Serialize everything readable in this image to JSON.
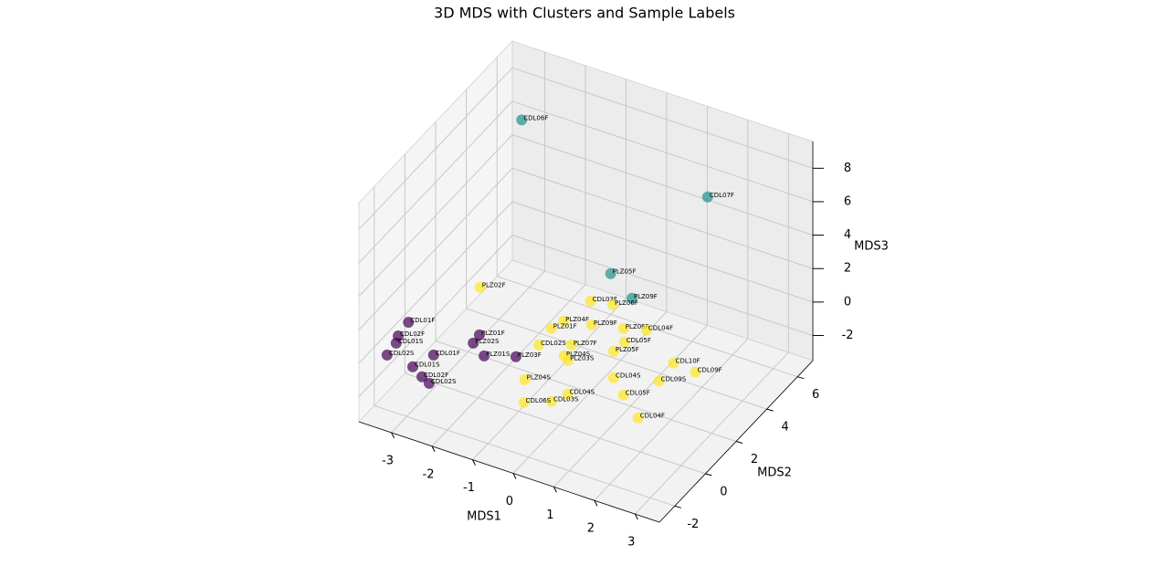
{
  "chart_data": {
    "type": "scatter3d",
    "title": "3D MDS with Clusters and Sample Labels",
    "xlabel": "MDS1",
    "ylabel": "MDS2",
    "zlabel": "MDS3",
    "xlim": [
      -3.8,
      3.6
    ],
    "ylim": [
      -3,
      7
    ],
    "zlim": [
      -3.5,
      9.6
    ],
    "xticks": [
      -3,
      -2,
      -1,
      0,
      1,
      2,
      3
    ],
    "yticks": [
      -2,
      0,
      2,
      4,
      6
    ],
    "zticks": [
      -2,
      0,
      2,
      4,
      6,
      8
    ],
    "grid": true,
    "series": [
      {
        "color": "#440154",
        "labels": [
          "CDL01F",
          "CDL02F",
          "CDL01S",
          "CDL02S",
          "CDL01F",
          "CDL01S",
          "CDL02F",
          "CDL02S",
          "PLZ01F",
          "PLZ02S",
          "PLZ03F",
          "PLZ01S"
        ],
        "x": [
          -3.6,
          -3.55,
          -3.46,
          -3.42,
          -2.55,
          -2.73,
          -2.38,
          -2.13,
          -2.05,
          -2.02,
          -0.98,
          -1.59
        ],
        "y": [
          -0.3,
          -1.1,
          -1.47,
          -2.17,
          -1.44,
          -2.32,
          -2.65,
          -2.84,
          0.22,
          -0.26,
          -0.23,
          -0.69
        ],
        "z": [
          0,
          0,
          0,
          0,
          0,
          0,
          0,
          0,
          0,
          0,
          0,
          0
        ]
      },
      {
        "color": "#21918c",
        "labels": [
          "CDL06F",
          "CDL07F",
          "PLZ05F",
          "PLZ09F"
        ],
        "x": [
          -2.7,
          1.55,
          -0.09,
          0.45
        ],
        "y": [
          4.7,
          5.57,
          3.59,
          3.55
        ],
        "z": [
          8,
          6,
          2,
          1
        ]
      },
      {
        "color": "#fde725",
        "labels": [
          "PLZ02F",
          "CDL03F",
          "PLZ04F",
          "PLZ09F",
          "PLZ01F",
          "PLZ06F",
          "CDL04F",
          "CDL05F",
          "CDL02S",
          "PLZ07F",
          "PLZ05F",
          "PLZ04S",
          "PLZ03S",
          "CDL10F",
          "CDL09F",
          "CDL09S",
          "CDL04S",
          "PLZ04S",
          "CDL04S",
          "CDL03S",
          "CDL06S",
          "CDL05F",
          "CDL04F",
          "PLZ06F"
        ],
        "x": [
          -2.88,
          -0.57,
          -0.72,
          -0.13,
          -0.82,
          0.53,
          0.99,
          0.79,
          -0.76,
          -0.15,
          0.75,
          -0.09,
          0.06,
          2.08,
          2.65,
          2.13,
          1.22,
          -0.41,
          0.65,
          0.48,
          -0.02,
          1.71,
          2.39,
          -0.09
        ],
        "y": [
          2.47,
          3.56,
          2.19,
          2.46,
          1.66,
          2.79,
          3.07,
          2.16,
          0.69,
          1.2,
          1.56,
          0.57,
          0.42,
          1.95,
          1.87,
          0.87,
          0.32,
          -1.16,
          -1.17,
          -1.77,
          -2.25,
          -0.34,
          -1.18,
          3.73
        ],
        "z": [
          0,
          0,
          0,
          0,
          0,
          0,
          0,
          0,
          0,
          0,
          0,
          0,
          0,
          0,
          0,
          0,
          0,
          0,
          0,
          0,
          0,
          0,
          0,
          0
        ]
      }
    ]
  }
}
